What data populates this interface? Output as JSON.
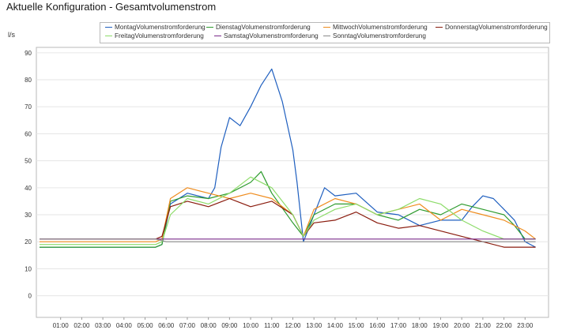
{
  "title": "Aktuelle Konfiguration - Gesamtvolumenstrom",
  "chart_data": {
    "type": "line",
    "title": "Aktuelle Konfiguration - Gesamtvolumenstrom",
    "ylabel": "l/s",
    "xlabel": "",
    "ylim": [
      -8,
      92
    ],
    "xlim": [
      0,
      24
    ],
    "yticks": [
      0,
      10,
      20,
      30,
      40,
      50,
      60,
      70,
      80,
      90
    ],
    "xticks": [
      "01:00",
      "02:00",
      "03:00",
      "04:00",
      "05:00",
      "06:00",
      "07:00",
      "08:00",
      "09:00",
      "10:00",
      "11:00",
      "12:00",
      "13:00",
      "14:00",
      "15:00",
      "16:00",
      "17:00",
      "18:00",
      "19:00",
      "20:00",
      "21:00",
      "22:00",
      "23:00"
    ],
    "grid": true,
    "legend_position": "top",
    "series": [
      {
        "name": "MontagVolumenstromforderung",
        "color": "#1f5fbf",
        "points": [
          [
            0,
            18
          ],
          [
            5.5,
            18
          ],
          [
            5.8,
            19
          ],
          [
            6.2,
            34
          ],
          [
            7,
            38
          ],
          [
            8,
            36
          ],
          [
            8.3,
            40
          ],
          [
            8.6,
            55
          ],
          [
            9,
            66
          ],
          [
            9.5,
            63
          ],
          [
            10,
            70
          ],
          [
            10.5,
            78
          ],
          [
            11,
            84
          ],
          [
            11.5,
            72
          ],
          [
            12,
            54
          ],
          [
            12.2,
            42
          ],
          [
            12.5,
            20
          ],
          [
            13,
            30
          ],
          [
            13.5,
            40
          ],
          [
            14,
            37
          ],
          [
            15,
            38
          ],
          [
            16,
            31
          ],
          [
            17,
            30
          ],
          [
            18,
            26
          ],
          [
            19,
            28
          ],
          [
            20,
            28
          ],
          [
            20.5,
            33
          ],
          [
            21,
            37
          ],
          [
            21.5,
            36
          ],
          [
            22,
            32
          ],
          [
            22.5,
            28
          ],
          [
            23,
            20
          ],
          [
            23.5,
            18
          ]
        ]
      },
      {
        "name": "DienstagVolumenstromforderung",
        "color": "#2e9b2e",
        "points": [
          [
            0,
            18
          ],
          [
            5.5,
            18
          ],
          [
            5.8,
            19
          ],
          [
            6.2,
            35
          ],
          [
            7,
            37
          ],
          [
            8,
            36
          ],
          [
            9,
            38
          ],
          [
            10,
            42
          ],
          [
            10.5,
            46
          ],
          [
            11,
            38
          ],
          [
            12,
            27
          ],
          [
            12.5,
            22
          ],
          [
            13,
            30
          ],
          [
            14,
            34
          ],
          [
            15,
            34
          ],
          [
            16,
            30
          ],
          [
            17,
            28
          ],
          [
            18,
            32
          ],
          [
            19,
            30
          ],
          [
            20,
            34
          ],
          [
            21,
            32
          ],
          [
            22,
            30
          ],
          [
            22.5,
            26
          ],
          [
            23,
            21
          ],
          [
            23.5,
            21
          ]
        ]
      },
      {
        "name": "MittwochVolumenstromforderung",
        "color": "#ef8c1e",
        "points": [
          [
            0,
            20
          ],
          [
            5.5,
            20
          ],
          [
            5.8,
            21
          ],
          [
            6.2,
            36
          ],
          [
            7,
            40
          ],
          [
            8,
            38
          ],
          [
            9,
            36
          ],
          [
            10,
            38
          ],
          [
            11,
            36
          ],
          [
            12,
            30
          ],
          [
            12.5,
            22
          ],
          [
            13,
            32
          ],
          [
            14,
            36
          ],
          [
            15,
            34
          ],
          [
            16,
            30
          ],
          [
            17,
            32
          ],
          [
            18,
            34
          ],
          [
            19,
            28
          ],
          [
            20,
            32
          ],
          [
            21,
            30
          ],
          [
            22,
            28
          ],
          [
            23,
            24
          ],
          [
            23.5,
            21
          ]
        ]
      },
      {
        "name": "DonnerstagVolumenstromforderung",
        "color": "#8a1c0e",
        "points": [
          [
            0,
            21
          ],
          [
            5.5,
            21
          ],
          [
            5.8,
            22
          ],
          [
            6.2,
            33
          ],
          [
            7,
            35
          ],
          [
            8,
            33
          ],
          [
            9,
            36
          ],
          [
            10,
            33
          ],
          [
            11,
            35
          ],
          [
            12,
            30
          ],
          [
            12.5,
            22
          ],
          [
            13,
            27
          ],
          [
            14,
            28
          ],
          [
            15,
            31
          ],
          [
            16,
            27
          ],
          [
            17,
            25
          ],
          [
            18,
            26
          ],
          [
            19,
            24
          ],
          [
            20,
            22
          ],
          [
            21,
            20
          ],
          [
            22,
            18
          ],
          [
            23,
            18
          ],
          [
            23.5,
            18
          ]
        ]
      },
      {
        "name": "FreitagVolumenstromforderung",
        "color": "#8ddc6a",
        "points": [
          [
            0,
            19
          ],
          [
            5.5,
            19
          ],
          [
            5.8,
            20
          ],
          [
            6.2,
            30
          ],
          [
            7,
            36
          ],
          [
            8,
            34
          ],
          [
            9,
            38
          ],
          [
            10,
            44
          ],
          [
            11,
            40
          ],
          [
            12,
            30
          ],
          [
            12.5,
            22
          ],
          [
            13,
            28
          ],
          [
            14,
            32
          ],
          [
            15,
            34
          ],
          [
            16,
            30
          ],
          [
            17,
            32
          ],
          [
            18,
            36
          ],
          [
            19,
            34
          ],
          [
            20,
            28
          ],
          [
            21,
            24
          ],
          [
            22,
            21
          ],
          [
            23,
            21
          ],
          [
            23.5,
            21
          ]
        ]
      },
      {
        "name": "SamstagVolumenstromforderung",
        "color": "#7a2a8a",
        "points": [
          [
            0,
            21
          ],
          [
            5.5,
            21
          ],
          [
            6,
            21
          ],
          [
            12,
            21
          ],
          [
            18,
            21
          ],
          [
            23.5,
            21
          ]
        ]
      },
      {
        "name": "SonntagVolumenstromforderung",
        "color": "#8a8a8a",
        "points": [
          [
            0,
            21
          ],
          [
            5.5,
            21
          ],
          [
            6,
            20
          ],
          [
            12,
            20
          ],
          [
            18,
            20
          ],
          [
            23.5,
            20
          ]
        ]
      }
    ]
  }
}
